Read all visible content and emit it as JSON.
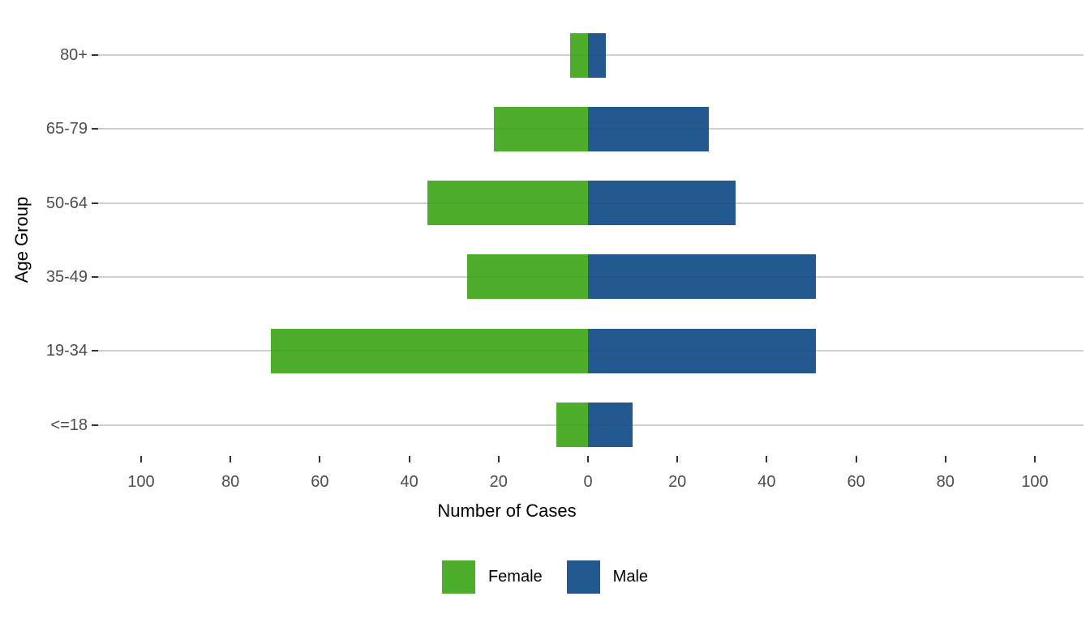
{
  "chart_data": {
    "type": "bar",
    "variant": "diverging-horizontal-pyramid",
    "title": "",
    "xlabel": "Number of Cases",
    "ylabel": "Age Group",
    "categories": [
      "80+",
      "65-79",
      "50-64",
      "35-49",
      "19-34",
      "<=18"
    ],
    "series": [
      {
        "name": "Female",
        "color": "#4EAD2A",
        "direction": "left",
        "values": [
          4,
          21,
          36,
          27,
          71,
          7
        ]
      },
      {
        "name": "Male",
        "color": "#24598F",
        "direction": "right",
        "values": [
          4,
          27,
          33,
          51,
          51,
          10
        ]
      }
    ],
    "x_ticks": [
      -100,
      -80,
      -60,
      -40,
      -20,
      0,
      20,
      40,
      60,
      80,
      100
    ],
    "x_tick_labels": [
      "100",
      "80",
      "60",
      "40",
      "20",
      "0",
      "20",
      "40",
      "60",
      "80",
      "100"
    ],
    "xlim": [
      -110,
      111
    ],
    "grid": "horizontal-major-only",
    "grid_color": "#d9d9d9",
    "tick_label_color": "#4d4d4d",
    "axis_title_color": "#000000",
    "legend_position": "bottom-center",
    "background": "#ffffff"
  }
}
